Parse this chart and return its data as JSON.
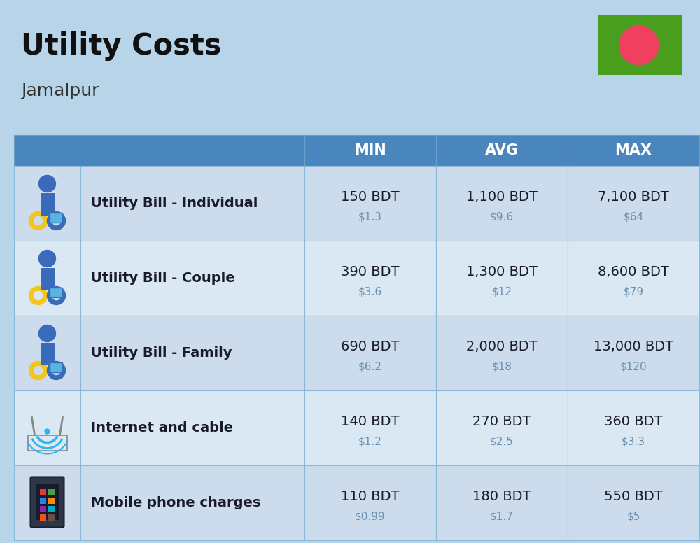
{
  "title": "Utility Costs",
  "subtitle": "Jamalpur",
  "background_color": "#b8d4e8",
  "header_bg_color": "#4a86be",
  "header_text_color": "#ffffff",
  "row_bg_color_1": "#ccdcec",
  "row_bg_color_2": "#dae8f4",
  "col_headers": [
    "MIN",
    "AVG",
    "MAX"
  ],
  "rows": [
    {
      "label": "Utility Bill - Individual",
      "min_bdt": "150 BDT",
      "min_usd": "$1.3",
      "avg_bdt": "1,100 BDT",
      "avg_usd": "$9.6",
      "max_bdt": "7,100 BDT",
      "max_usd": "$64"
    },
    {
      "label": "Utility Bill - Couple",
      "min_bdt": "390 BDT",
      "min_usd": "$3.6",
      "avg_bdt": "1,300 BDT",
      "avg_usd": "$12",
      "max_bdt": "8,600 BDT",
      "max_usd": "$79"
    },
    {
      "label": "Utility Bill - Family",
      "min_bdt": "690 BDT",
      "min_usd": "$6.2",
      "avg_bdt": "2,000 BDT",
      "avg_usd": "$18",
      "max_bdt": "13,000 BDT",
      "max_usd": "$120"
    },
    {
      "label": "Internet and cable",
      "min_bdt": "140 BDT",
      "min_usd": "$1.2",
      "avg_bdt": "270 BDT",
      "avg_usd": "$2.5",
      "max_bdt": "360 BDT",
      "max_usd": "$3.3"
    },
    {
      "label": "Mobile phone charges",
      "min_bdt": "110 BDT",
      "min_usd": "$0.99",
      "avg_bdt": "180 BDT",
      "avg_usd": "$1.7",
      "max_bdt": "550 BDT",
      "max_usd": "$5"
    }
  ],
  "flag_green": "#4a9e1e",
  "flag_red": "#f04060",
  "cell_text_color": "#1a1a2e",
  "usd_text_color": "#6a8faf",
  "label_font_size": 14,
  "value_font_size": 14,
  "usd_font_size": 11,
  "header_font_size": 15,
  "title_fontsize": 30,
  "subtitle_fontsize": 18
}
